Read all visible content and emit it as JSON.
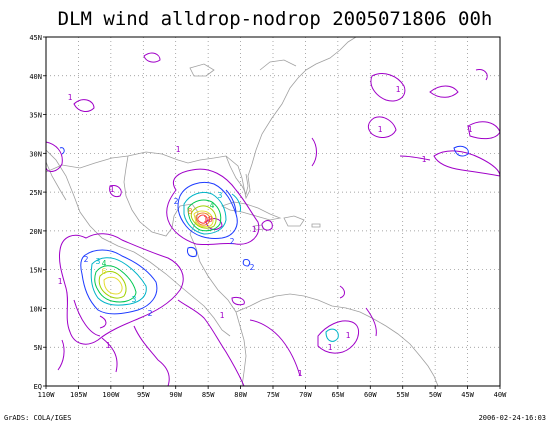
{
  "title": "DLM wind alldrop-nodrop 2005071806 00h",
  "footer": {
    "credit": "GrADS: COLA/IGES",
    "timestamp": "2006-02-24-16:03"
  },
  "map": {
    "lon_range": [
      -110,
      -40
    ],
    "lat_range": [
      0,
      45
    ],
    "x_ticks": [
      "110W",
      "105W",
      "100W",
      "95W",
      "90W",
      "85W",
      "80W",
      "75W",
      "70W",
      "65W",
      "60W",
      "55W",
      "50W",
      "45W",
      "40W"
    ],
    "y_ticks": [
      "EQ",
      "5N",
      "10N",
      "15N",
      "20N",
      "25N",
      "30N",
      "35N",
      "40N",
      "45N"
    ],
    "grid": "dotted",
    "coastline_color": "#a0a0a0"
  },
  "contours": {
    "colors": {
      "1": "#a000c8",
      "2": "#1e3cff",
      "3": "#00b4c8",
      "4": "#00c850",
      "5": "#a0d200",
      "6": "#e6dc32",
      "8": "#f08228",
      "10": "#fa3c3c"
    },
    "labels": [
      "1",
      "2",
      "3",
      "4",
      "6",
      "8",
      "10"
    ]
  }
}
